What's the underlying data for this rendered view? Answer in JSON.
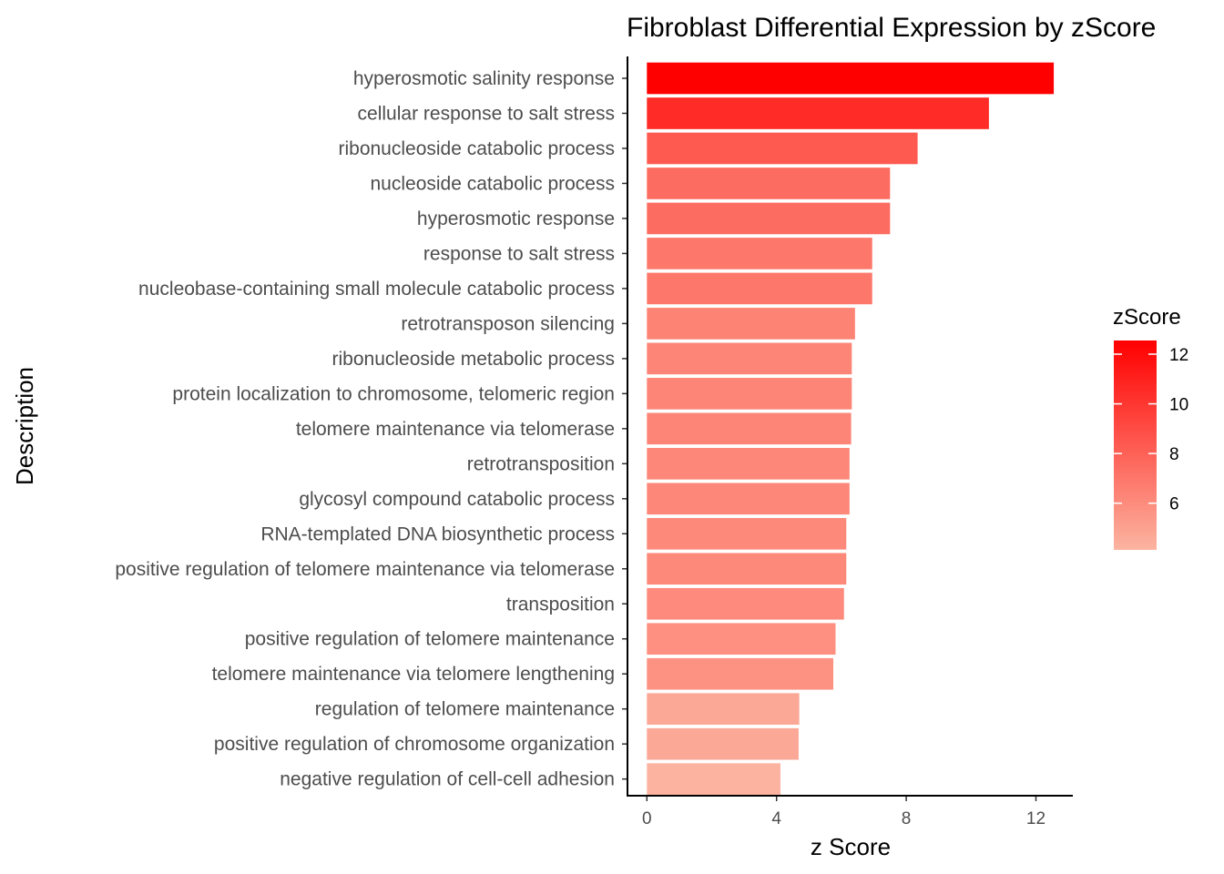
{
  "chart_data": {
    "type": "bar",
    "orientation": "horizontal",
    "title": "Fibroblast Differential Expression by zScore",
    "xlabel": "z Score",
    "ylabel": "Description",
    "xlim": [
      0,
      13.2
    ],
    "xticks": [
      0,
      4,
      8,
      12
    ],
    "grid": false,
    "categories": [
      "hyperosmotic salinity response",
      "cellular response to salt stress",
      "ribonucleoside catabolic process",
      "nucleoside catabolic process",
      "hyperosmotic response",
      "response to salt stress",
      "nucleobase-containing small molecule catabolic process",
      "retrotransposon silencing",
      "ribonucleoside metabolic process",
      "protein localization to chromosome, telomeric region",
      "telomere maintenance via telomerase",
      "retrotransposition",
      "glycosyl compound catabolic process",
      "RNA-templated DNA biosynthetic process",
      "positive regulation of telomere maintenance via telomerase",
      "transposition",
      "positive regulation of telomere maintenance",
      "telomere maintenance via telomere lengthening",
      "regulation of telomere maintenance",
      "positive regulation of chromosome organization",
      "negative regulation of cell-cell adhesion"
    ],
    "values": [
      12.55,
      10.55,
      8.35,
      7.5,
      7.5,
      6.95,
      6.95,
      6.42,
      6.32,
      6.32,
      6.3,
      6.25,
      6.25,
      6.15,
      6.15,
      6.08,
      5.82,
      5.75,
      4.7,
      4.68,
      4.12
    ],
    "legend": {
      "title": "zScore",
      "position": "right",
      "ticks": [
        6,
        8,
        10,
        12
      ],
      "min": 4.12,
      "max": 12.55,
      "low_color": "#fcb4a1",
      "high_color": "#ff0000"
    }
  }
}
